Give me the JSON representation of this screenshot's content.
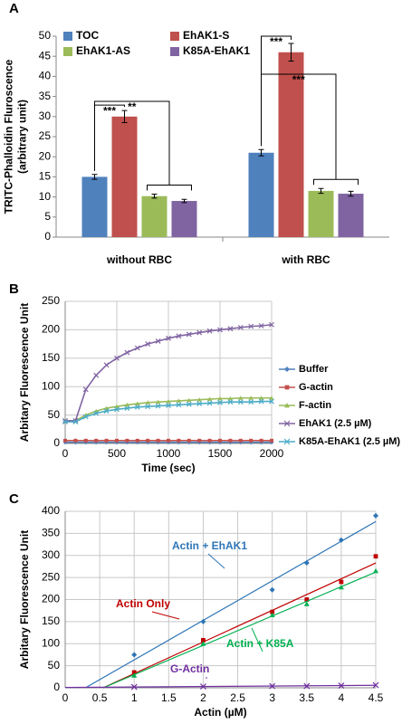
{
  "chart_data": [
    {
      "type": "bar",
      "panel_label": "A",
      "ylabel": [
        "TRITC-Phalloidin Fluroscence",
        "(arbitrary unit)"
      ],
      "categories": [
        "without RBC",
        "with RBC"
      ],
      "series": [
        {
          "name": "TOC",
          "color": "#4f81bd",
          "values": [
            15,
            21
          ],
          "errors": [
            0.6,
            0.8
          ]
        },
        {
          "name": "EhAK1-S",
          "color": "#c0504d",
          "values": [
            30,
            46
          ],
          "errors": [
            1.5,
            2.2
          ]
        },
        {
          "name": "EhAK1-AS",
          "color": "#9bbb59",
          "values": [
            10.2,
            11.5
          ],
          "errors": [
            0.5,
            0.6
          ]
        },
        {
          "name": "K85A-EhAK1",
          "color": "#8064a2",
          "values": [
            9,
            10.8
          ],
          "errors": [
            0.4,
            0.6
          ]
        }
      ],
      "annotations": [
        "***",
        "**",
        "***",
        "***"
      ],
      "ylim": [
        0,
        50
      ],
      "yticks": [
        0,
        5,
        10,
        15,
        20,
        25,
        30,
        35,
        40,
        45,
        50
      ],
      "grid": false
    },
    {
      "type": "line",
      "panel_label": "B",
      "xlabel": "Time (sec)",
      "ylabel": "Arbitary Fluorescence Unit",
      "x": [
        0,
        100,
        200,
        300,
        400,
        500,
        600,
        700,
        800,
        900,
        1000,
        1100,
        1200,
        1300,
        1400,
        1500,
        1600,
        1700,
        1800,
        1900,
        2000
      ],
      "series": [
        {
          "name": "Buffer",
          "color": "#4f81bd",
          "marker": "diamond",
          "values": [
            2,
            2,
            2,
            2,
            2,
            2,
            2,
            2,
            2,
            2,
            2,
            2,
            2,
            2,
            2,
            2,
            2,
            2,
            2,
            2,
            2
          ]
        },
        {
          "name": "G-actin",
          "color": "#c0504d",
          "marker": "square",
          "values": [
            5,
            5,
            5,
            5,
            5,
            5,
            5,
            5,
            5,
            5,
            5,
            5,
            5,
            5,
            5,
            5,
            5,
            5,
            5,
            5,
            5
          ]
        },
        {
          "name": "F-actin",
          "color": "#9bbb59",
          "marker": "triangle",
          "values": [
            40,
            40,
            50,
            57,
            62,
            65,
            68,
            70,
            72,
            73,
            74,
            75,
            76,
            77,
            78,
            79,
            79,
            80,
            80,
            80,
            80
          ]
        },
        {
          "name": "EhAK1 (2.5 µM)",
          "color": "#8064a2",
          "marker": "cross",
          "values": [
            40,
            40,
            95,
            120,
            138,
            150,
            160,
            168,
            175,
            180,
            185,
            189,
            192,
            195,
            198,
            200,
            202,
            204,
            206,
            207,
            209
          ]
        },
        {
          "name": "K85A-EhAK1 (2.5 µM)",
          "color": "#4bacc6",
          "marker": "cross",
          "values": [
            38,
            38,
            47,
            53,
            57,
            60,
            62,
            64,
            65,
            66,
            67,
            68,
            69,
            70,
            71,
            72,
            73,
            73,
            73,
            74,
            74
          ]
        }
      ],
      "xlim": [
        0,
        2000
      ],
      "xticks": [
        0,
        500,
        1000,
        1500,
        2000
      ],
      "ylim": [
        0,
        250
      ],
      "yticks": [
        0,
        50,
        100,
        150,
        200,
        250
      ],
      "grid": true
    },
    {
      "type": "scatter",
      "panel_label": "C",
      "xlabel": "Actin (µM)",
      "ylabel": "Arbitary Fluorescence Unit",
      "x": [
        1,
        2,
        3,
        3.5,
        4,
        4.5
      ],
      "series": [
        {
          "name": "Actin + EhAK1",
          "color": "#2e75b6",
          "marker": "diamond",
          "values": [
            75,
            150,
            222,
            283,
            335,
            390
          ]
        },
        {
          "name": "Actin Only",
          "color": "#c00000",
          "marker": "square",
          "values": [
            35,
            108,
            172,
            200,
            240,
            298
          ]
        },
        {
          "name": "Actin + K85A",
          "color": "#00b050",
          "marker": "triangle",
          "values": [
            28,
            100,
            165,
            190,
            228,
            265
          ]
        },
        {
          "name": "G-Actin",
          "color": "#7030a0",
          "marker": "cross",
          "values": [
            2,
            3,
            4,
            4,
            5,
            6
          ]
        }
      ],
      "trendline": true,
      "xlim": [
        0,
        4.5
      ],
      "xticks": [
        0,
        0.5,
        1,
        1.5,
        2,
        2.5,
        3,
        3.5,
        4,
        4.5
      ],
      "ylim": [
        0,
        400
      ],
      "yticks": [
        0,
        50,
        100,
        150,
        200,
        250,
        300,
        350,
        400
      ],
      "grid": true
    }
  ]
}
